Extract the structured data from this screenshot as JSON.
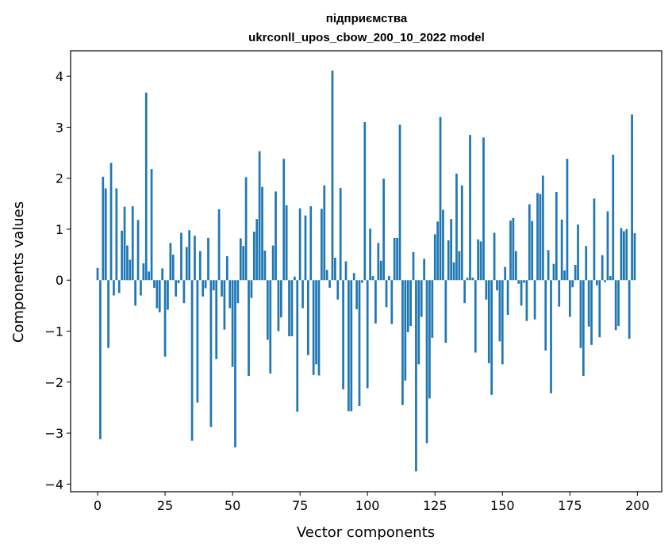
{
  "chart_data": {
    "type": "bar",
    "title_line1": "підприємства",
    "title_line2": "ukrconll_upos_cbow_200_10_2022 model",
    "xlabel": "Vector components",
    "ylabel": "Components values",
    "xlim": [
      -10,
      209
    ],
    "ylim": [
      -4.15,
      4.5
    ],
    "grid": false,
    "bar_color": "#1f77b4",
    "xticks": [
      0,
      25,
      50,
      75,
      100,
      125,
      150,
      175,
      200
    ],
    "xtick_labels": [
      "0",
      "25",
      "50",
      "75",
      "100",
      "125",
      "150",
      "175",
      "200"
    ],
    "yticks": [
      -4,
      -3,
      -2,
      -1,
      0,
      1,
      2,
      3,
      4
    ],
    "ytick_labels": [
      "−4",
      "−3",
      "−2",
      "−1",
      "0",
      "1",
      "2",
      "3",
      "4"
    ],
    "values": [
      0.24,
      -3.12,
      2.03,
      1.8,
      -1.33,
      2.3,
      -0.3,
      1.8,
      -0.25,
      0.97,
      1.44,
      0.68,
      0.4,
      1.45,
      -0.5,
      1.18,
      -0.3,
      0.33,
      3.68,
      0.17,
      2.18,
      -0.15,
      -0.55,
      -0.63,
      0.23,
      -1.5,
      -0.58,
      0.73,
      0.5,
      -0.32,
      -0.06,
      0.93,
      -0.45,
      0.65,
      0.98,
      -3.15,
      0.87,
      -2.4,
      0.57,
      -0.32,
      -0.16,
      0.83,
      -2.88,
      -0.2,
      -1.55,
      1.39,
      -0.32,
      -0.97,
      0.47,
      -0.55,
      -1.7,
      -3.28,
      -0.45,
      0.82,
      0.67,
      2.02,
      -1.88,
      -0.35,
      0.95,
      1.2,
      2.53,
      1.83,
      0.58,
      -1.17,
      -1.83,
      0.68,
      1.74,
      -1.0,
      -0.73,
      2.38,
      1.47,
      -1.1,
      -1.1,
      0.07,
      -2.58,
      1.41,
      -0.55,
      1.27,
      -1.47,
      1.45,
      -1.86,
      -1.65,
      -1.87,
      1.4,
      1.86,
      0.2,
      -0.15,
      4.11,
      0.44,
      -0.38,
      1.81,
      -2.14,
      0.37,
      -2.57,
      -2.57,
      0.14,
      -0.57,
      -2.47,
      -0.05,
      3.1,
      -2.12,
      1.01,
      0.08,
      -0.85,
      0.73,
      0.38,
      1.99,
      -0.53,
      0.08,
      -0.86,
      0.83,
      0.83,
      3.05,
      -2.45,
      -1.97,
      -1.02,
      -0.9,
      0.55,
      -3.75,
      -1.65,
      -0.72,
      0.42,
      -3.2,
      -2.32,
      -1.13,
      0.9,
      1.15,
      3.2,
      1.38,
      -1.23,
      0.78,
      1.2,
      0.35,
      2.09,
      0.57,
      1.86,
      -0.45,
      0.05,
      2.85,
      0.05,
      -1.42,
      0.8,
      0.76,
      2.8,
      -0.38,
      -1.63,
      -2.25,
      0.93,
      -0.2,
      -1.2,
      -1.65,
      0.26,
      -0.68,
      1.17,
      1.22,
      0.57,
      -0.07,
      -0.5,
      -0.05,
      -0.8,
      1.49,
      1.16,
      -0.77,
      1.71,
      1.69,
      2.05,
      -1.38,
      0.59,
      -2.22,
      0.32,
      1.73,
      -0.52,
      1.19,
      0.19,
      2.38,
      -0.72,
      -0.14,
      0.3,
      1.09,
      -1.33,
      -1.88,
      0.67,
      -0.91,
      -1.27,
      1.6,
      -0.1,
      -1.12,
      0.49,
      -0.04,
      1.35,
      0.08,
      2.46,
      -0.98,
      -0.9,
      1.02,
      0.96,
      1.0,
      -1.15,
      3.25,
      0.92
    ]
  }
}
